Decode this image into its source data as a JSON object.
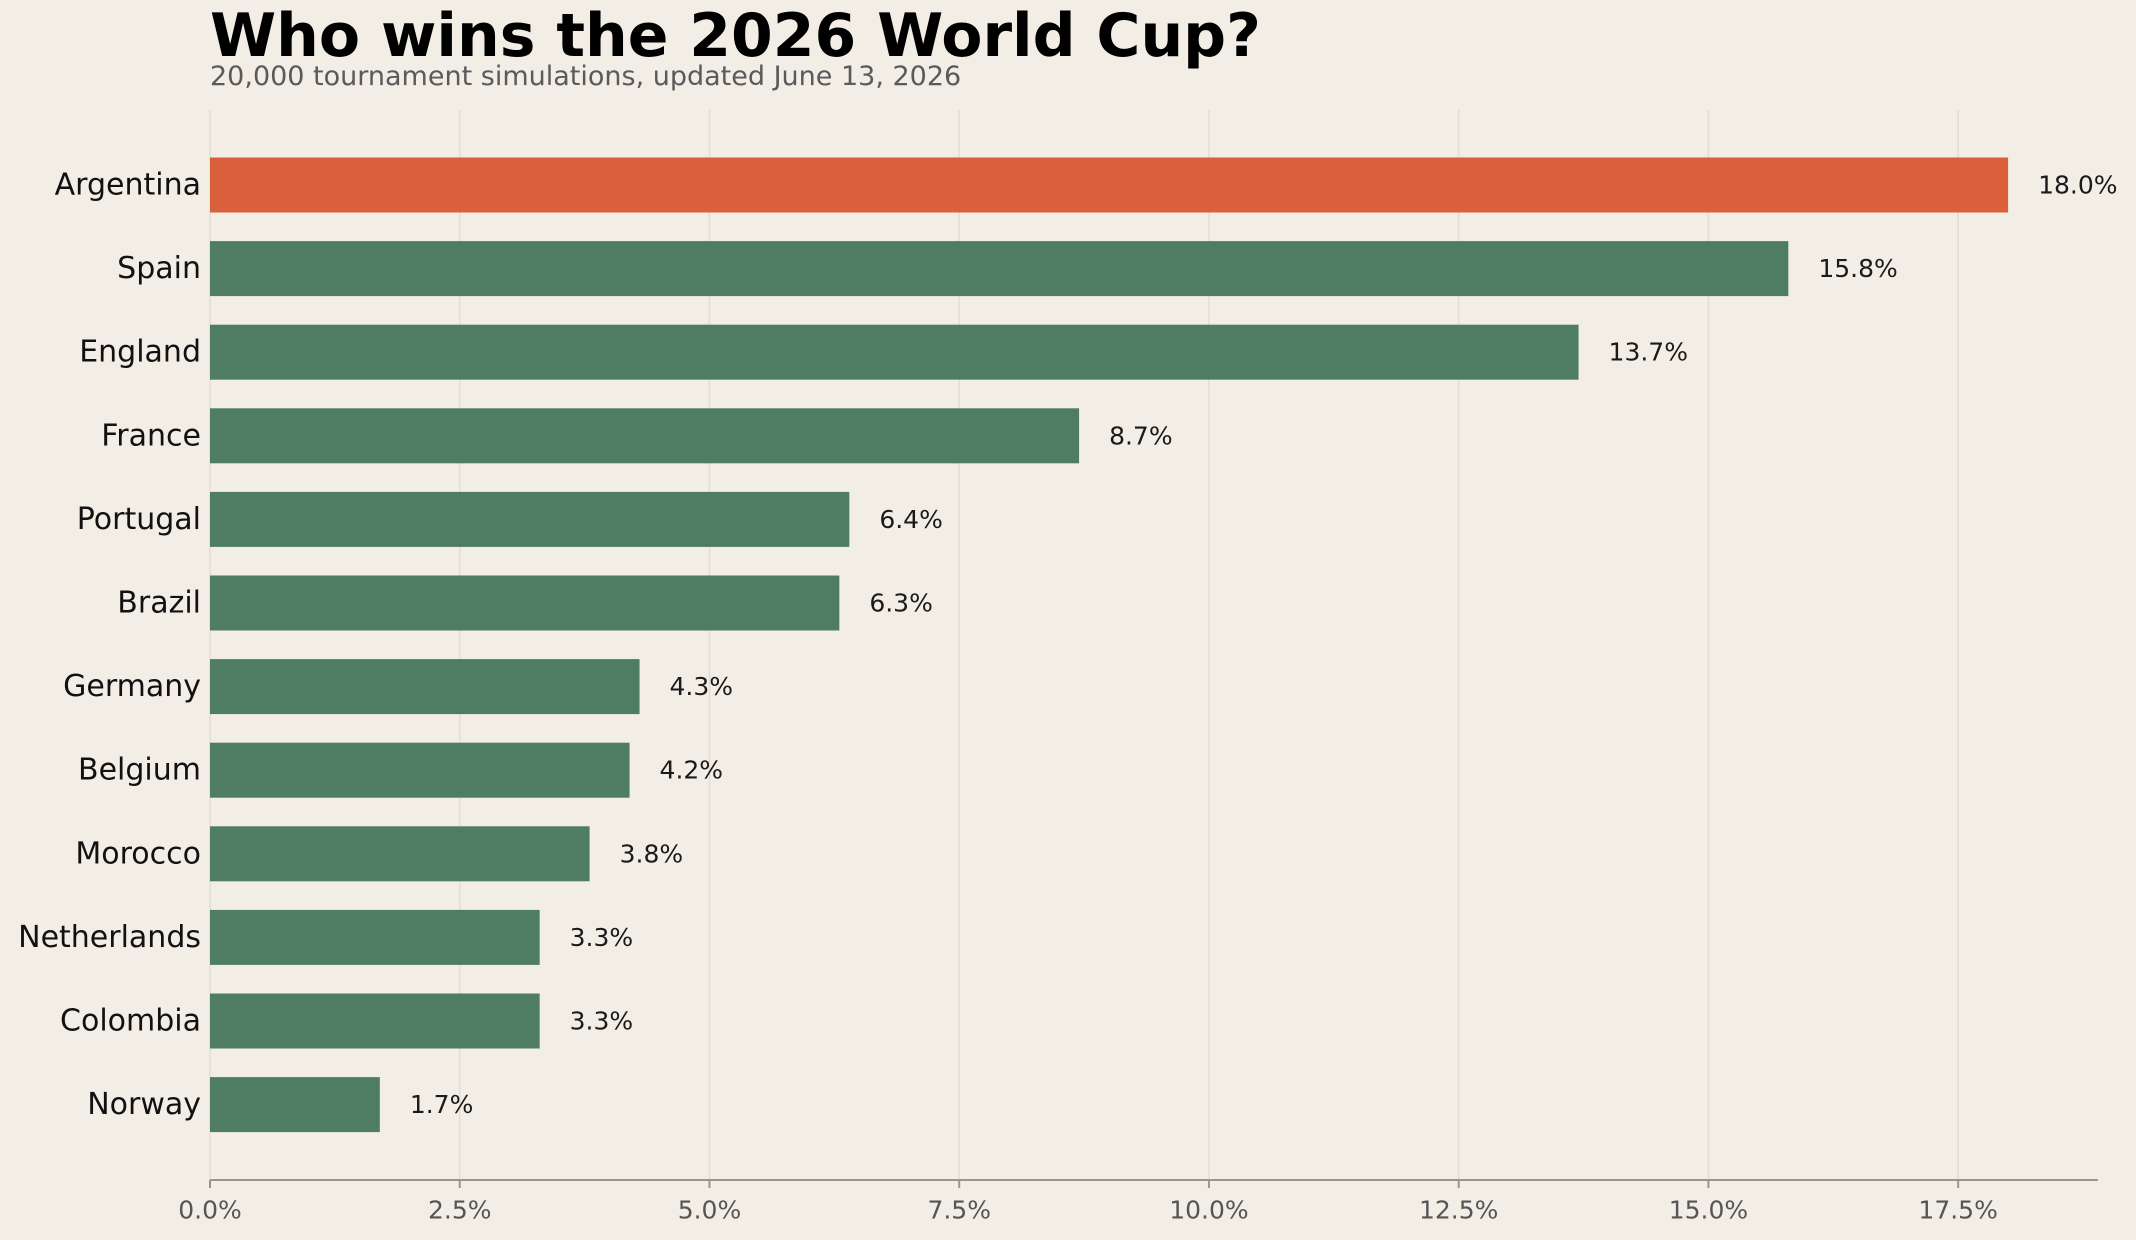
{
  "header": {
    "title": "Who wins the 2026 World Cup?",
    "subtitle": "20,000 tournament simulations, updated June 13, 2026"
  },
  "colors": {
    "background": "#f2ede5",
    "highlight": "#d9603b",
    "bar": "#4f7d61",
    "grid": "#e3ddd3",
    "axis": "#9a958e"
  },
  "chart_data": {
    "type": "bar",
    "orientation": "horizontal",
    "categories": [
      "Argentina",
      "Spain",
      "England",
      "France",
      "Portugal",
      "Brazil",
      "Germany",
      "Belgium",
      "Morocco",
      "Netherlands",
      "Colombia",
      "Norway"
    ],
    "values": [
      18.0,
      15.8,
      13.7,
      8.7,
      6.4,
      6.3,
      4.3,
      4.2,
      3.8,
      3.3,
      3.3,
      1.7
    ],
    "value_labels": [
      "18.0%",
      "15.8%",
      "13.7%",
      "8.7%",
      "6.4%",
      "6.3%",
      "4.3%",
      "4.2%",
      "3.8%",
      "3.3%",
      "3.3%",
      "1.7%"
    ],
    "highlight_index": 0,
    "x_ticks": [
      0,
      2.5,
      5,
      7.5,
      10,
      12.5,
      15,
      17.5
    ],
    "x_tick_labels": [
      "0.0%",
      "2.5%",
      "5.0%",
      "7.5%",
      "10.0%",
      "12.5%",
      "15.0%",
      "17.5%"
    ],
    "xlim": [
      0,
      18.9
    ],
    "xlabel": "",
    "ylabel": "",
    "grid": "vertical",
    "legend": "none"
  }
}
